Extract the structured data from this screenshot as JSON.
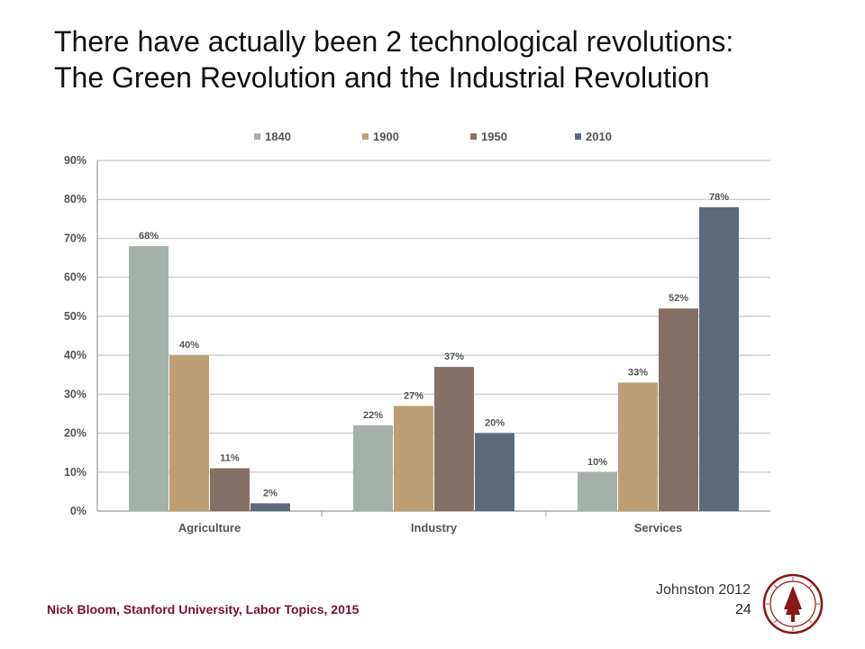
{
  "slide": {
    "title_line1": "There have actually been 2 technological revolutions:",
    "title_line2": "The Green Revolution and the Industrial Revolution",
    "footer": "Nick Bloom, Stanford University, Labor Topics, 2015",
    "citation": "Johnston 2012",
    "page_number": "24"
  },
  "colors": {
    "1840": "#a3b1a9",
    "1900": "#bd9f77",
    "1950": "#857067",
    "2010": "#5d6a7a",
    "gridline": "#d0d0d0",
    "text": "#555555",
    "seal": "#8c1515"
  },
  "chart_data": {
    "type": "bar",
    "title": "",
    "xlabel": "",
    "ylabel": "",
    "categories": [
      "Agriculture",
      "Industry",
      "Services"
    ],
    "series": [
      {
        "name": "1840",
        "values": [
          68,
          22,
          10
        ]
      },
      {
        "name": "1900",
        "values": [
          40,
          27,
          33
        ]
      },
      {
        "name": "1950",
        "values": [
          11,
          37,
          52
        ]
      },
      {
        "name": "2010",
        "values": [
          2,
          20,
          78
        ]
      }
    ],
    "data_labels": [
      [
        "68%",
        "22%",
        "10%"
      ],
      [
        "40%",
        "27%",
        "33%"
      ],
      [
        "11%",
        "37%",
        "52%"
      ],
      [
        "2%",
        "20%",
        "78%"
      ]
    ],
    "ylim": [
      0,
      90
    ],
    "yticks": [
      0,
      10,
      20,
      30,
      40,
      50,
      60,
      70,
      80,
      90
    ],
    "ytick_labels": [
      "0%",
      "10%",
      "20%",
      "30%",
      "40%",
      "50%",
      "60%",
      "70%",
      "80%",
      "90%"
    ],
    "grid": true,
    "legend_position": "top"
  }
}
